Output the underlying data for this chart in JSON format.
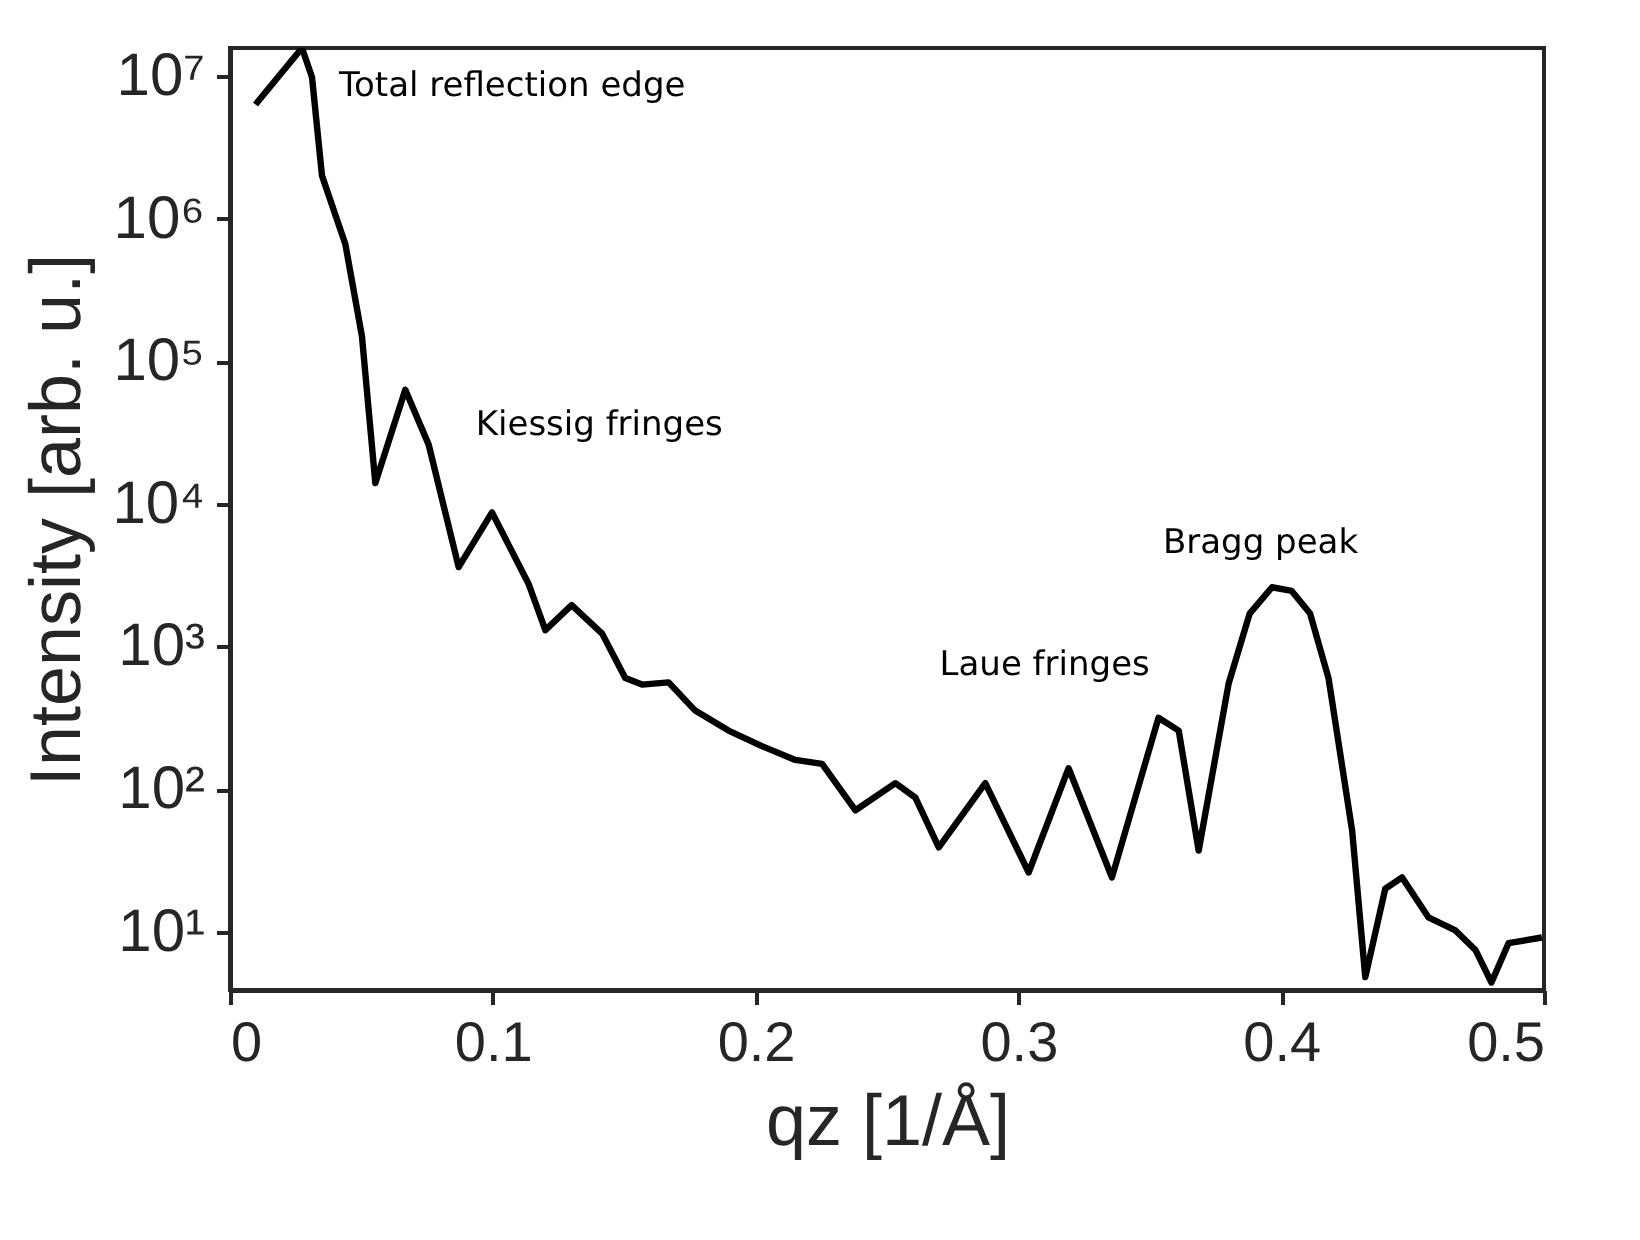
{
  "chart_data": {
    "type": "line",
    "xlabel": "qz [1/Å]",
    "ylabel": "Intensity [arb. u.]",
    "log": "y",
    "grid": false,
    "marker": "none",
    "line_style": "solid",
    "xlim": [
      0,
      0.5
    ],
    "xticks": [
      0,
      0.1,
      0.2,
      0.3,
      0.4,
      0.5
    ],
    "ylim": [
      3.9,
      15700000
    ],
    "yticks": [
      {
        "value": 10,
        "label": "10¹"
      },
      {
        "value": 100,
        "label": "10²"
      },
      {
        "value": 1000,
        "label": "10³"
      },
      {
        "value": 10000,
        "label": "10⁴"
      },
      {
        "value": 100000,
        "label": "10⁵"
      },
      {
        "value": 1000000,
        "label": "10⁶"
      },
      {
        "value": 10000000,
        "label": "10⁷"
      }
    ],
    "annotations": [
      "Total reflection edge",
      "Kiessig fringes",
      "Laue fringes",
      "Bragg peak"
    ],
    "series": [
      {
        "color": "#000000",
        "x": [
          0.0097,
          0.0274,
          0.0312,
          0.035,
          0.0439,
          0.0502,
          0.0553,
          0.0667,
          0.0756,
          0.087,
          0.0997,
          0.1136,
          0.12,
          0.13,
          0.1416,
          0.1504,
          0.1568,
          0.1669,
          0.177,
          0.1897,
          0.2024,
          0.2151,
          0.2253,
          0.238,
          0.2532,
          0.2608,
          0.2697,
          0.2874,
          0.3039,
          0.3191,
          0.3356,
          0.3533,
          0.361,
          0.3686,
          0.38,
          0.388,
          0.3965,
          0.404,
          0.411,
          0.418,
          0.427,
          0.432,
          0.4396,
          0.446,
          0.456,
          0.4663,
          0.474,
          0.48,
          0.4865,
          0.4992
        ],
        "values": [
          6300000,
          15700000,
          9800000,
          2000000,
          660000,
          150000,
          14000,
          63000,
          26000,
          3600,
          8700,
          2750,
          1300,
          1950,
          1230,
          600,
          540,
          560,
          355,
          257,
          200,
          160,
          150,
          71,
          110,
          87,
          39,
          110,
          26,
          140,
          24,
          316,
          257,
          37,
          550,
          1700,
          2600,
          2450,
          1700,
          600,
          51,
          4.8,
          20,
          24,
          12.6,
          10.2,
          7.4,
          4.4,
          8.3,
          9.1
        ]
      }
    ]
  }
}
